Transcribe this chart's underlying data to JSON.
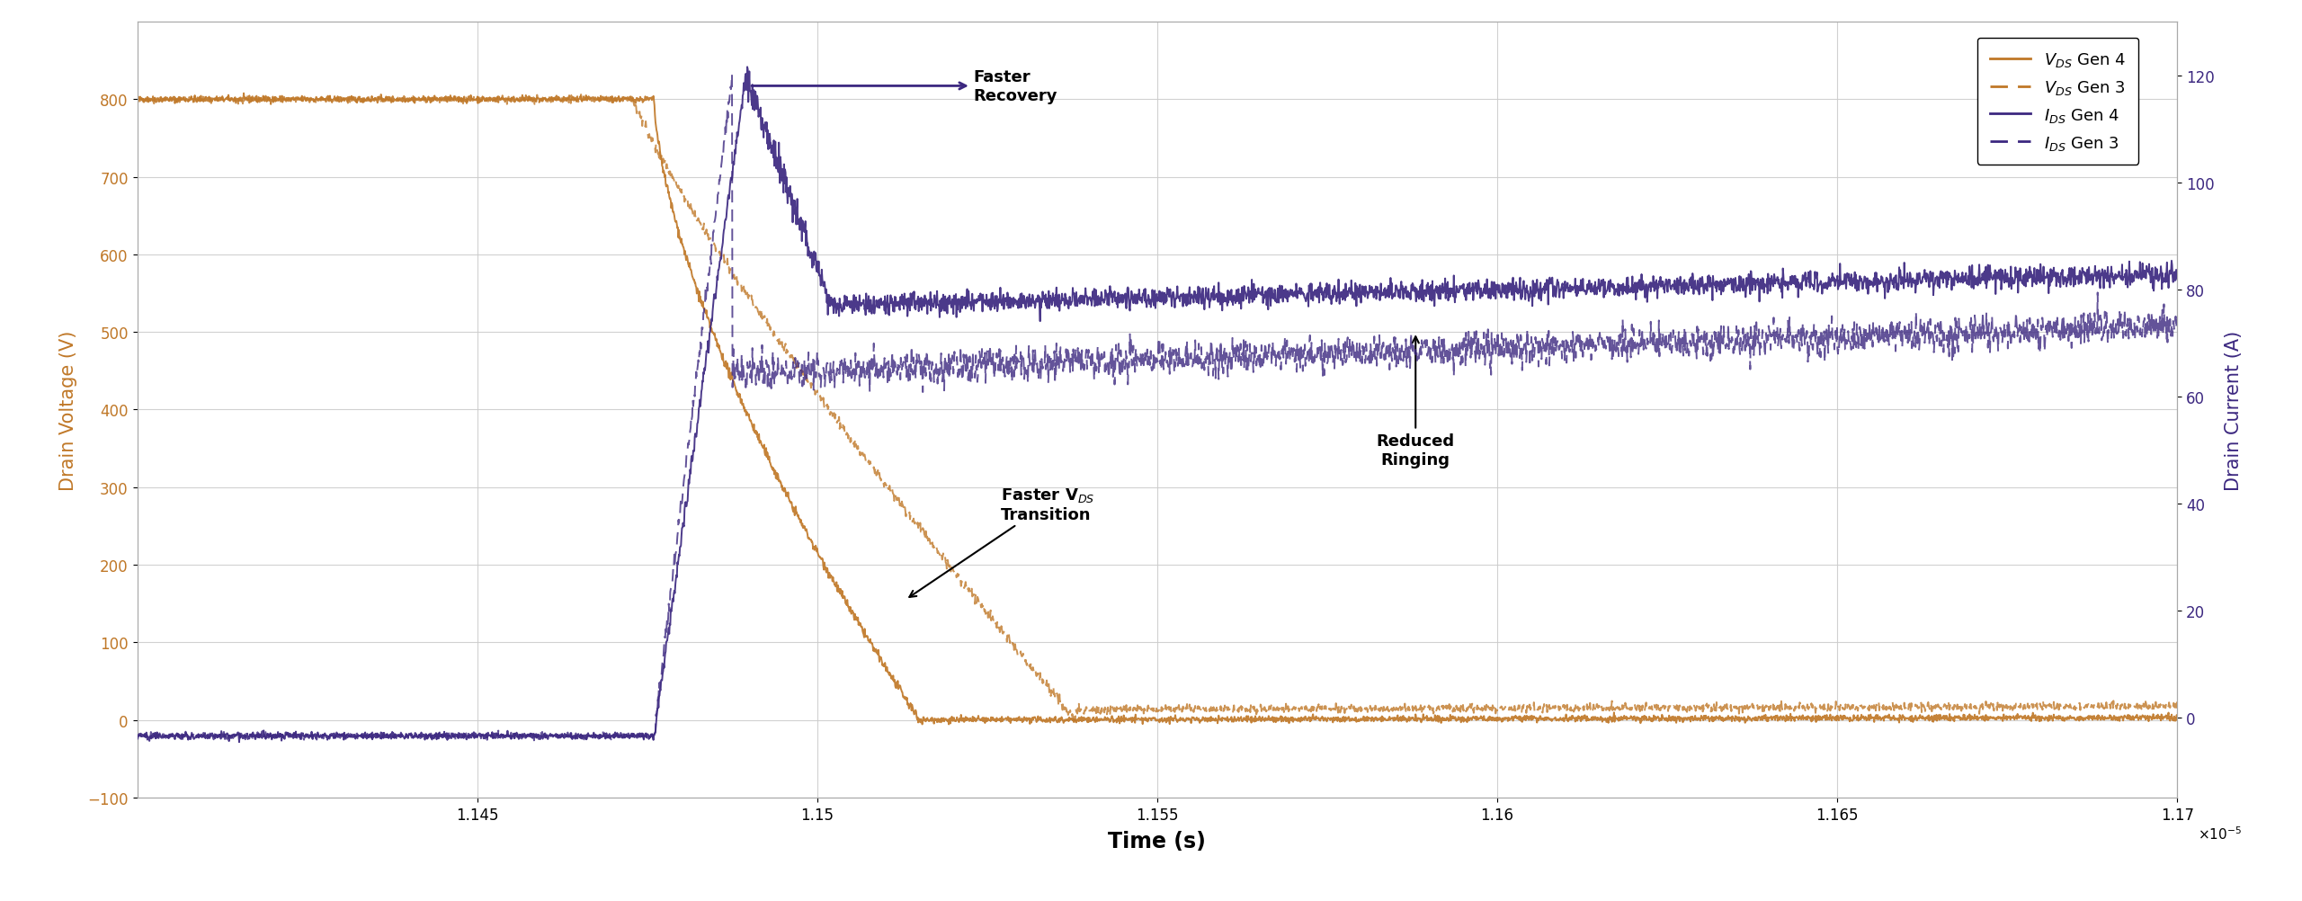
{
  "title": "",
  "xlabel": "Time (s)",
  "ylabel_left": "Drain Voltage (V)",
  "ylabel_right": "Drain Current (A)",
  "xlim": [
    1.14e-05,
    1.17e-05
  ],
  "ylim_left": [
    -100,
    900
  ],
  "ylim_right": [
    -15,
    130
  ],
  "color_vds": "#C07828",
  "color_ids": "#3C2880",
  "bg_color": "#ffffff",
  "grid_color": "#cccccc",
  "xtick_labels": [
    "1.145",
    "1.15",
    "1.155",
    "1.16",
    "1.165",
    "1.17"
  ],
  "xtick_vals": [
    1.145e-05,
    1.15e-05,
    1.155e-05,
    1.16e-05,
    1.165e-05,
    1.17e-05
  ],
  "ytick_left": [
    -100,
    0,
    100,
    200,
    300,
    400,
    500,
    600,
    700,
    800
  ],
  "ytick_right": [
    0,
    20,
    40,
    60,
    80,
    100,
    120
  ]
}
